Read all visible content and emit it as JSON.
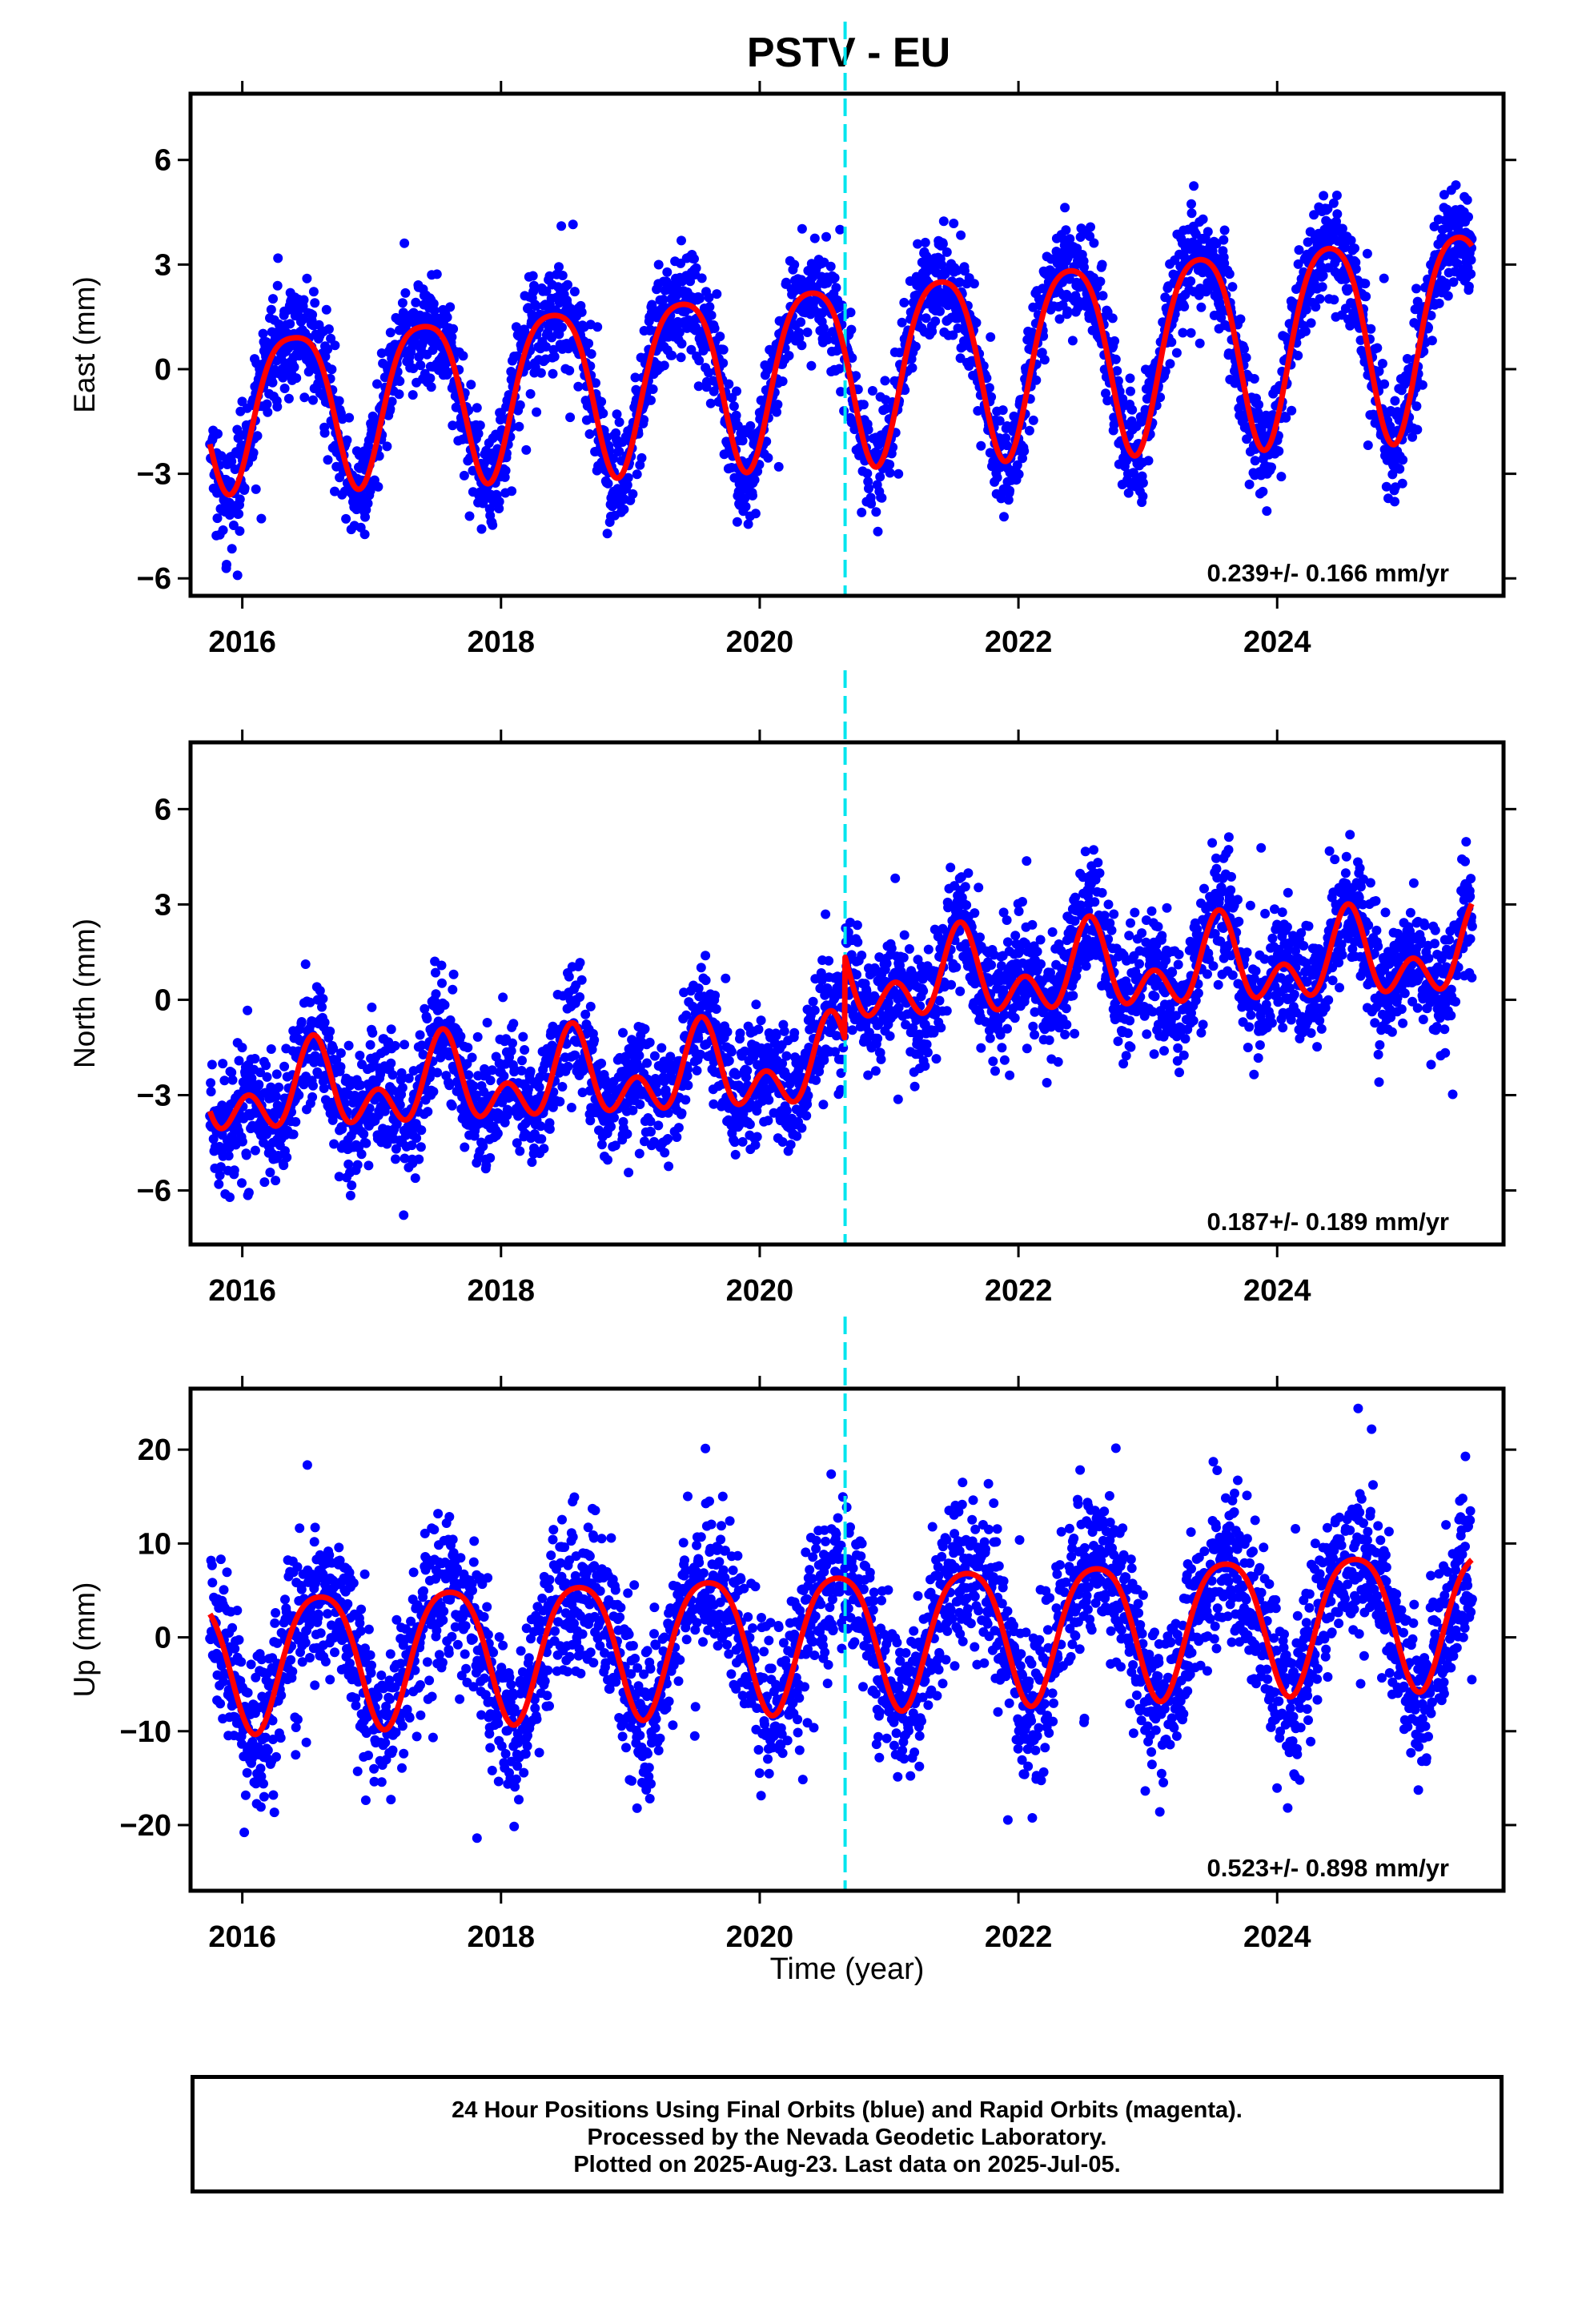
{
  "title": "PSTV - EU",
  "colors": {
    "final_orbits": "#0000ff",
    "model_fit": "#ff0000",
    "offset_marker": "#00e5ee",
    "axes": "#000000"
  },
  "footer": {
    "line1": "24 Hour Positions Using Final Orbits (blue) and Rapid Orbits (magenta).",
    "line2": "Processed by the Nevada Geodetic Laboratory.",
    "line3": "Plotted on 2025-Aug-23. Last data on 2025-Jul-05."
  },
  "chart_data": [
    {
      "type": "scatter",
      "ylabel": "East (mm)",
      "xlabel": "",
      "xlim": [
        2015.6,
        2025.75
      ],
      "ylim": [
        -6.5,
        7.9
      ],
      "xticks": [
        2016,
        2018,
        2020,
        2022,
        2024
      ],
      "yticks": [
        -6,
        -3,
        0,
        3,
        6
      ],
      "rate_text": "0.239+/- 0.166 mm/yr",
      "offset_epoch": 2020.66,
      "data_span": [
        2015.75,
        2025.51
      ],
      "model": {
        "offset": 0.0,
        "trend": 0.24,
        "annual_amp": 2.5,
        "annual_amp_trend": 0.08,
        "annual_phase_peak": 0.4,
        "semiannual_amp": 0.45,
        "semiannual_phase_peak": 0.15,
        "steps": [],
        "noise_sd": 0.75
      },
      "series": [
        {
          "name": "",
          "kind": "points",
          "color": "#0000ff"
        },
        {
          "name": "",
          "kind": "fit",
          "color": "#ff0000"
        }
      ]
    },
    {
      "type": "scatter",
      "ylabel": "North (mm)",
      "xlabel": "",
      "xlim": [
        2015.6,
        2025.75
      ],
      "ylim": [
        -7.7,
        8.1
      ],
      "xticks": [
        2016,
        2018,
        2020,
        2022,
        2024
      ],
      "yticks": [
        -6,
        -3,
        0,
        3,
        6
      ],
      "rate_text": "0.187+/- 0.189 mm/yr",
      "offset_epoch": 2020.66,
      "data_span": [
        2015.75,
        2025.51
      ],
      "model": {
        "offset": -2.25,
        "trend": 0.19,
        "annual_amp": 0.9,
        "annual_amp_trend": 0.0,
        "annual_phase_peak": 0.55,
        "semiannual_amp": 0.9,
        "semiannual_phase_peak": 0.05,
        "steps": [
          [
            2020.66,
            2.6
          ]
        ],
        "noise_sd": 0.95
      },
      "series": [
        {
          "name": "",
          "kind": "points",
          "color": "#0000ff"
        },
        {
          "name": "",
          "kind": "fit",
          "color": "#ff0000"
        }
      ]
    },
    {
      "type": "scatter",
      "ylabel": "Up (mm)",
      "xlabel": "Time (year)",
      "xlim": [
        2015.6,
        2025.75
      ],
      "ylim": [
        -27,
        26.5
      ],
      "xticks": [
        2016,
        2018,
        2020,
        2022,
        2024
      ],
      "yticks": [
        -20,
        -10,
        0,
        10,
        20
      ],
      "rate_text": "0.523+/- 0.898 mm/yr",
      "offset_epoch": 2020.66,
      "data_span": [
        2015.75,
        2025.51
      ],
      "model": {
        "offset": 0.0,
        "trend": 0.5,
        "annual_amp": 7.2,
        "annual_amp_trend": 0.0,
        "annual_phase_peak": 0.6,
        "semiannual_amp": 1.2,
        "semiannual_phase_peak": 0.35,
        "steps": [],
        "noise_sd": 4.2
      },
      "series": [
        {
          "name": "",
          "kind": "points",
          "color": "#0000ff"
        },
        {
          "name": "",
          "kind": "fit",
          "color": "#ff0000"
        }
      ]
    }
  ]
}
